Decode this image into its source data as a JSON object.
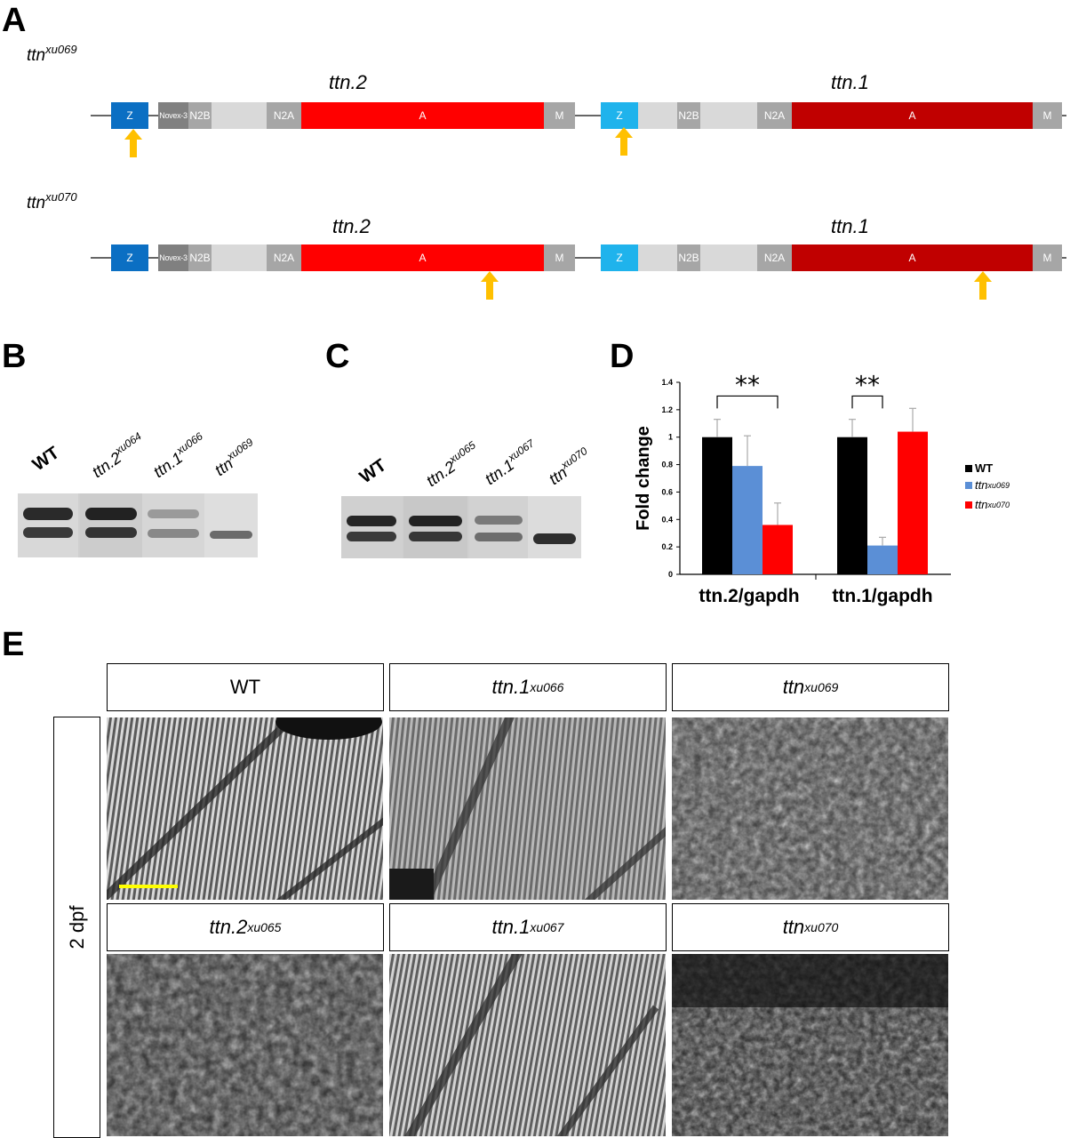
{
  "panels": {
    "a": "A",
    "b": "B",
    "c": "C",
    "d": "D",
    "e": "E"
  },
  "panel_a": {
    "rows": [
      {
        "allele_base": "ttn",
        "allele_sup": "xu069",
        "gene_left": "ttn.2",
        "gene_right": "ttn.1"
      },
      {
        "allele_base": "ttn",
        "allele_sup": "xu070",
        "gene_left": "ttn.2",
        "gene_right": "ttn.1"
      }
    ],
    "domains_left": [
      "Z",
      "Novex-3",
      "N2B",
      "N2A",
      "A",
      "M"
    ],
    "domains_right": [
      "Z",
      "N2B",
      "N2A",
      "A",
      "M"
    ],
    "colors": {
      "z_left": "#0b6fc3",
      "z_right": "#1fb3ec",
      "a_left": "#ff0000",
      "a_right": "#c00000",
      "grey": "#a6a6a6",
      "dark_grey": "#808080",
      "light_grey": "#d9d9d9",
      "arrow": "#ffc000"
    }
  },
  "panel_b": {
    "lanes": [
      {
        "base": "WT",
        "sup": "",
        "bold": true
      },
      {
        "base": "ttn.2",
        "sup": "xu064",
        "bold": false
      },
      {
        "base": "ttn.1",
        "sup": "xu066",
        "bold": false
      },
      {
        "base": "ttn",
        "sup": "xu069",
        "bold": false
      }
    ]
  },
  "panel_c": {
    "lanes": [
      {
        "base": "WT",
        "sup": "",
        "bold": true
      },
      {
        "base": "ttn.2",
        "sup": "xu065",
        "bold": false
      },
      {
        "base": "ttn.1",
        "sup": "xu067",
        "bold": false
      },
      {
        "base": "ttn",
        "sup": "xu070",
        "bold": false
      }
    ]
  },
  "chart_data": {
    "type": "bar",
    "categories": [
      "ttn.2/gapdh",
      "ttn.1/gapdh"
    ],
    "series": [
      {
        "name": "WT",
        "color": "#000000",
        "values": [
          1.0,
          1.0
        ],
        "errors": [
          0.13,
          0.13
        ]
      },
      {
        "name": "ttn xu069",
        "color": "#5b8fd6",
        "values": [
          0.79,
          0.21
        ],
        "errors": [
          0.22,
          0.06
        ]
      },
      {
        "name": "ttn xu070",
        "color": "#ff0000",
        "values": [
          0.36,
          1.04
        ],
        "errors": [
          0.16,
          0.17
        ]
      }
    ],
    "ylabel": "Fold change",
    "ylim": [
      0,
      1.4
    ],
    "yticks": [
      "0",
      "0.2",
      "0.4",
      "0.6",
      "0.8",
      "1",
      "1.2",
      "1.4"
    ],
    "significance": [
      "**",
      "**"
    ],
    "legend": [
      {
        "base": "WT",
        "sup": ""
      },
      {
        "base": "ttn",
        "sup": "xu069"
      },
      {
        "base": "ttn",
        "sup": "xu070"
      }
    ],
    "legend_position": "right"
  },
  "panel_e": {
    "row_label": "2 dpf",
    "images": [
      {
        "base": "WT",
        "sup": "",
        "italic": false
      },
      {
        "base": "ttn.1",
        "sup": "xu066",
        "italic": true
      },
      {
        "base": "ttn",
        "sup": "xu069",
        "italic": true
      },
      {
        "base": "ttn.2",
        "sup": "xu065",
        "italic": true
      },
      {
        "base": "ttn.1",
        "sup": "xu067",
        "italic": true
      },
      {
        "base": "ttn",
        "sup": "xu070",
        "italic": true
      }
    ],
    "scale_bar_color": "#ffff00"
  }
}
